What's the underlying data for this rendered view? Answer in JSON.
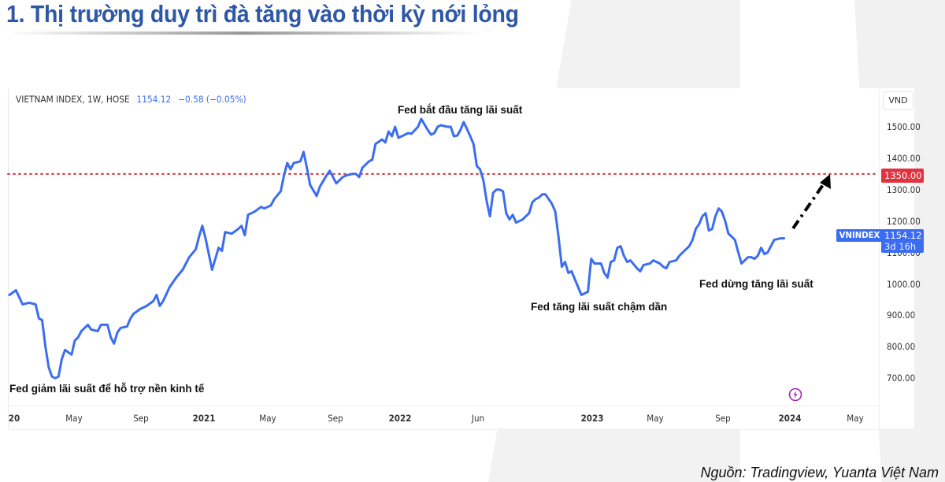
{
  "page": {
    "title": "1. Thị trường duy trì đà tăng vào thời kỳ nới lỏng",
    "source": "Nguồn: Tradingview, Yuanta Việt Nam"
  },
  "chart": {
    "legend_name": "VIETNAM INDEX, 1W, HOSE",
    "legend_value": "1154.12",
    "legend_change": "−0.58 (−0.05%)",
    "unit": "VND",
    "symbol_tag": "VNINDEX",
    "last_price": "1154.12",
    "countdown": "3d 16h",
    "target_price": "1350.00",
    "line_color": "#3c6df0",
    "target_color": "#e0333f",
    "event_icon": "lightning-icon"
  },
  "annotations": [
    {
      "text": "Fed giảm lãi suất để hỗ trợ nền kinh tế"
    },
    {
      "text": "Fed bắt đầu tăng lãi suất"
    },
    {
      "text": "Fed tăng lãi suất chậm dần"
    },
    {
      "text": "Fed dừng tăng lãi suất"
    }
  ],
  "chart_data": {
    "type": "line",
    "title": "VIETNAM INDEX, 1W, HOSE",
    "xlabel": "",
    "ylabel": "VND",
    "ylim": [
      650,
      1600
    ],
    "yticks": [
      "1500.00",
      "1400.00",
      "1300.00",
      "1200.00",
      "1100.00",
      "1000.00",
      "900.00",
      "800.00",
      "700.00"
    ],
    "xticks": [
      "20",
      "May",
      "Sep",
      "2021",
      "May",
      "Sep",
      "2022",
      "Jun",
      "2023",
      "May",
      "Sep",
      "2024",
      "May"
    ],
    "grid": false,
    "reference_line": {
      "value": 1350,
      "style": "dotted",
      "color": "#e0333f",
      "label": "1350.00"
    },
    "last_value": 1154.12,
    "series": [
      {
        "name": "VNINDEX",
        "x_week_index_start": "2020-01",
        "points": [
          [
            0,
            965
          ],
          [
            2,
            980
          ],
          [
            4,
            935
          ],
          [
            6,
            940
          ],
          [
            8,
            935
          ],
          [
            9,
            890
          ],
          [
            10,
            885
          ],
          [
            11,
            800
          ],
          [
            12,
            735
          ],
          [
            13,
            705
          ],
          [
            14,
            700
          ],
          [
            15,
            705
          ],
          [
            16,
            760
          ],
          [
            17,
            790
          ],
          [
            19,
            775
          ],
          [
            20,
            820
          ],
          [
            21,
            830
          ],
          [
            22,
            850
          ],
          [
            24,
            870
          ],
          [
            25,
            855
          ],
          [
            27,
            850
          ],
          [
            28,
            870
          ],
          [
            30,
            870
          ],
          [
            31,
            830
          ],
          [
            32,
            810
          ],
          [
            33,
            845
          ],
          [
            34,
            860
          ],
          [
            36,
            865
          ],
          [
            37,
            890
          ],
          [
            38,
            905
          ],
          [
            40,
            920
          ],
          [
            42,
            930
          ],
          [
            44,
            945
          ],
          [
            45,
            965
          ],
          [
            46,
            930
          ],
          [
            47,
            945
          ],
          [
            49,
            990
          ],
          [
            51,
            1020
          ],
          [
            53,
            1045
          ],
          [
            55,
            1085
          ],
          [
            57,
            1110
          ],
          [
            58,
            1150
          ],
          [
            59,
            1185
          ],
          [
            60,
            1145
          ],
          [
            62,
            1045
          ],
          [
            64,
            1115
          ],
          [
            65,
            1105
          ],
          [
            66,
            1165
          ],
          [
            68,
            1160
          ],
          [
            70,
            1175
          ],
          [
            71,
            1185
          ],
          [
            72,
            1155
          ],
          [
            73,
            1220
          ],
          [
            75,
            1230
          ],
          [
            77,
            1245
          ],
          [
            78,
            1240
          ],
          [
            80,
            1250
          ],
          [
            81,
            1270
          ],
          [
            83,
            1295
          ],
          [
            84,
            1345
          ],
          [
            85,
            1385
          ],
          [
            86,
            1365
          ],
          [
            87,
            1385
          ],
          [
            89,
            1390
          ],
          [
            90,
            1420
          ],
          [
            91,
            1370
          ],
          [
            92,
            1315
          ],
          [
            94,
            1280
          ],
          [
            95,
            1310
          ],
          [
            97,
            1345
          ],
          [
            98,
            1360
          ],
          [
            99,
            1340
          ],
          [
            100,
            1320
          ],
          [
            102,
            1340
          ],
          [
            103,
            1345
          ],
          [
            105,
            1350
          ],
          [
            106,
            1350
          ],
          [
            107,
            1340
          ],
          [
            108,
            1370
          ],
          [
            110,
            1390
          ],
          [
            111,
            1395
          ],
          [
            112,
            1445
          ],
          [
            114,
            1460
          ],
          [
            115,
            1450
          ],
          [
            116,
            1485
          ],
          [
            117,
            1470
          ],
          [
            118,
            1500
          ],
          [
            119,
            1465
          ],
          [
            121,
            1475
          ],
          [
            122,
            1480
          ],
          [
            123,
            1478
          ],
          [
            125,
            1500
          ],
          [
            126,
            1525
          ],
          [
            128,
            1490
          ],
          [
            129,
            1475
          ],
          [
            130,
            1480
          ],
          [
            131,
            1500
          ],
          [
            132,
            1505
          ],
          [
            134,
            1500
          ],
          [
            135,
            1500
          ],
          [
            136,
            1470
          ],
          [
            137,
            1472
          ],
          [
            138,
            1490
          ],
          [
            139,
            1515
          ],
          [
            141,
            1470
          ],
          [
            142,
            1445
          ],
          [
            143,
            1375
          ],
          [
            144,
            1365
          ],
          [
            145,
            1330
          ],
          [
            146,
            1265
          ],
          [
            147,
            1215
          ],
          [
            148,
            1290
          ],
          [
            149,
            1300
          ],
          [
            150,
            1300
          ],
          [
            151,
            1295
          ],
          [
            152,
            1225
          ],
          [
            153,
            1205
          ],
          [
            154,
            1220
          ],
          [
            155,
            1195
          ],
          [
            157,
            1205
          ],
          [
            159,
            1225
          ],
          [
            160,
            1260
          ],
          [
            161,
            1270
          ],
          [
            162,
            1275
          ],
          [
            163,
            1285
          ],
          [
            164,
            1285
          ],
          [
            165,
            1270
          ],
          [
            166,
            1255
          ],
          [
            167,
            1230
          ],
          [
            168,
            1150
          ],
          [
            169,
            1055
          ],
          [
            170,
            1070
          ],
          [
            171,
            1035
          ],
          [
            172,
            1040
          ],
          [
            174,
            990
          ],
          [
            175,
            965
          ],
          [
            176,
            970
          ],
          [
            177,
            975
          ],
          [
            178,
            1080
          ],
          [
            179,
            1065
          ],
          [
            181,
            1065
          ],
          [
            182,
            1035
          ],
          [
            183,
            1020
          ],
          [
            184,
            1070
          ],
          [
            185,
            1075
          ],
          [
            186,
            1115
          ],
          [
            187,
            1120
          ],
          [
            188,
            1090
          ],
          [
            189,
            1070
          ],
          [
            190,
            1075
          ],
          [
            192,
            1050
          ],
          [
            193,
            1040
          ],
          [
            194,
            1060
          ],
          [
            196,
            1065
          ],
          [
            197,
            1075
          ],
          [
            199,
            1065
          ],
          [
            200,
            1055
          ],
          [
            201,
            1050
          ],
          [
            202,
            1070
          ],
          [
            204,
            1075
          ],
          [
            205,
            1090
          ],
          [
            206,
            1100
          ],
          [
            207,
            1110
          ],
          [
            208,
            1120
          ],
          [
            209,
            1140
          ],
          [
            210,
            1175
          ],
          [
            211,
            1190
          ],
          [
            212,
            1215
          ],
          [
            213,
            1225
          ],
          [
            214,
            1170
          ],
          [
            215,
            1175
          ],
          [
            216,
            1215
          ],
          [
            217,
            1240
          ],
          [
            218,
            1230
          ],
          [
            219,
            1200
          ],
          [
            220,
            1160
          ],
          [
            221,
            1150
          ],
          [
            222,
            1140
          ],
          [
            223,
            1100
          ],
          [
            224,
            1065
          ],
          [
            226,
            1085
          ],
          [
            227,
            1085
          ],
          [
            228,
            1080
          ],
          [
            229,
            1090
          ],
          [
            230,
            1115
          ],
          [
            231,
            1095
          ],
          [
            232,
            1100
          ],
          [
            234,
            1140
          ],
          [
            236,
            1145
          ],
          [
            237,
            1145
          ]
        ]
      }
    ],
    "annotations": [
      {
        "text": "Fed giảm lãi suất để hỗ trợ nền kinh tế",
        "near": "2020 low ~700"
      },
      {
        "text": "Fed bắt đầu tăng lãi suất",
        "near": "2022 peak ~1525"
      },
      {
        "text": "Fed tăng lãi suất chậm dần",
        "near": "late 2022 low ~965"
      },
      {
        "text": "Fed dừng tăng lãi suất",
        "near": "late 2023 ~1065"
      }
    ],
    "projection_arrow": {
      "from": 1150,
      "to": 1350,
      "style": "dash-dot",
      "color": "#000000"
    }
  }
}
